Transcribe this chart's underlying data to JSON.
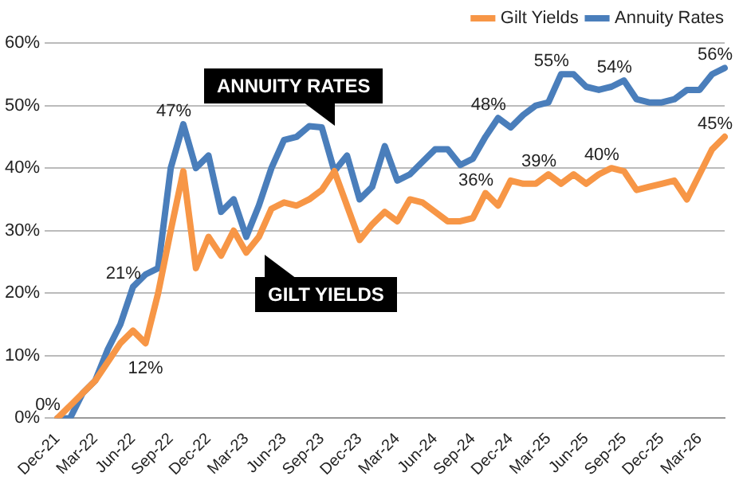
{
  "chart_data": {
    "type": "line",
    "categories": [
      "Dec-21",
      null,
      null,
      "Mar-22",
      null,
      null,
      "Jun-22",
      null,
      null,
      "Sep-22",
      null,
      null,
      "Dec-22",
      null,
      null,
      "Mar-23",
      null,
      null,
      "Jun-23",
      null,
      null,
      "Sep-23",
      null,
      null,
      "Dec-23",
      null,
      null,
      "Mar-24",
      null,
      null,
      "Jun-24",
      null,
      null,
      "Sep-24",
      null,
      null,
      "Dec-24",
      null,
      null,
      "Mar-25",
      null,
      null,
      "Jun-25",
      null,
      null,
      "Sep-25",
      null,
      null,
      "Dec-25",
      null,
      null,
      "Mar-26",
      null,
      null
    ],
    "series": [
      {
        "name": "Gilt Yields",
        "color": "#f79646",
        "values": [
          0,
          2,
          4,
          6,
          9,
          12,
          14,
          12,
          20,
          30,
          39.5,
          24,
          29,
          26,
          30,
          26.5,
          29,
          33.5,
          34.5,
          34,
          35,
          36.5,
          39.5,
          34,
          28.5,
          31,
          33,
          31.5,
          35,
          34.5,
          33,
          31.5,
          31.5,
          32,
          36,
          34,
          38,
          37.5,
          37.5,
          39,
          37.5,
          39,
          37.5,
          39,
          40,
          39.5,
          36.5,
          37,
          37.5,
          38,
          35,
          39,
          43,
          45
        ],
        "value_labels": [
          "0%",
          null,
          null,
          null,
          null,
          null,
          null,
          "12%",
          null,
          null,
          null,
          null,
          null,
          null,
          null,
          null,
          null,
          null,
          null,
          null,
          null,
          null,
          null,
          null,
          null,
          null,
          null,
          null,
          null,
          null,
          null,
          null,
          null,
          null,
          "36%",
          null,
          null,
          null,
          null,
          "39%",
          null,
          null,
          null,
          null,
          "40%",
          null,
          null,
          null,
          null,
          null,
          null,
          null,
          null,
          "45%"
        ]
      },
      {
        "name": "Annuity Rates",
        "color": "#4a7ebb",
        "values": [
          0,
          0,
          4,
          6,
          11,
          15,
          21,
          23,
          24,
          40,
          47,
          40,
          42,
          33,
          35,
          29,
          34,
          40,
          44.5,
          45,
          46.7,
          46.5,
          39.5,
          42,
          35,
          37,
          43.5,
          38,
          39,
          41,
          43,
          43,
          40.5,
          41.5,
          45,
          48,
          46.5,
          48.5,
          50,
          50.5,
          55,
          55,
          53,
          52.5,
          53,
          54,
          51,
          50.5,
          50.5,
          51,
          52.5,
          52.5,
          55,
          56
        ],
        "value_labels": [
          null,
          null,
          null,
          null,
          null,
          null,
          "21%",
          null,
          null,
          null,
          "47%",
          null,
          null,
          null,
          null,
          null,
          null,
          null,
          null,
          null,
          null,
          null,
          null,
          null,
          null,
          null,
          null,
          null,
          null,
          null,
          null,
          null,
          null,
          null,
          null,
          "48%",
          null,
          null,
          null,
          null,
          "55%",
          null,
          null,
          null,
          null,
          "54%",
          null,
          null,
          null,
          null,
          null,
          null,
          null,
          "56%"
        ]
      }
    ],
    "ylim": [
      0,
      60
    ],
    "yticks": [
      {
        "value": 0,
        "label": "0%"
      },
      {
        "value": 10,
        "label": "10%"
      },
      {
        "value": 20,
        "label": "20%"
      },
      {
        "value": 30,
        "label": "30%"
      },
      {
        "value": 40,
        "label": "40%"
      },
      {
        "value": 50,
        "label": "50%"
      },
      {
        "value": 60,
        "label": "60%"
      }
    ],
    "annotations": [
      "ANNUITY RATES",
      "GILT YIELDS"
    ],
    "grid": "y",
    "legend": "top right",
    "marker": "none",
    "line_style": "solid"
  }
}
